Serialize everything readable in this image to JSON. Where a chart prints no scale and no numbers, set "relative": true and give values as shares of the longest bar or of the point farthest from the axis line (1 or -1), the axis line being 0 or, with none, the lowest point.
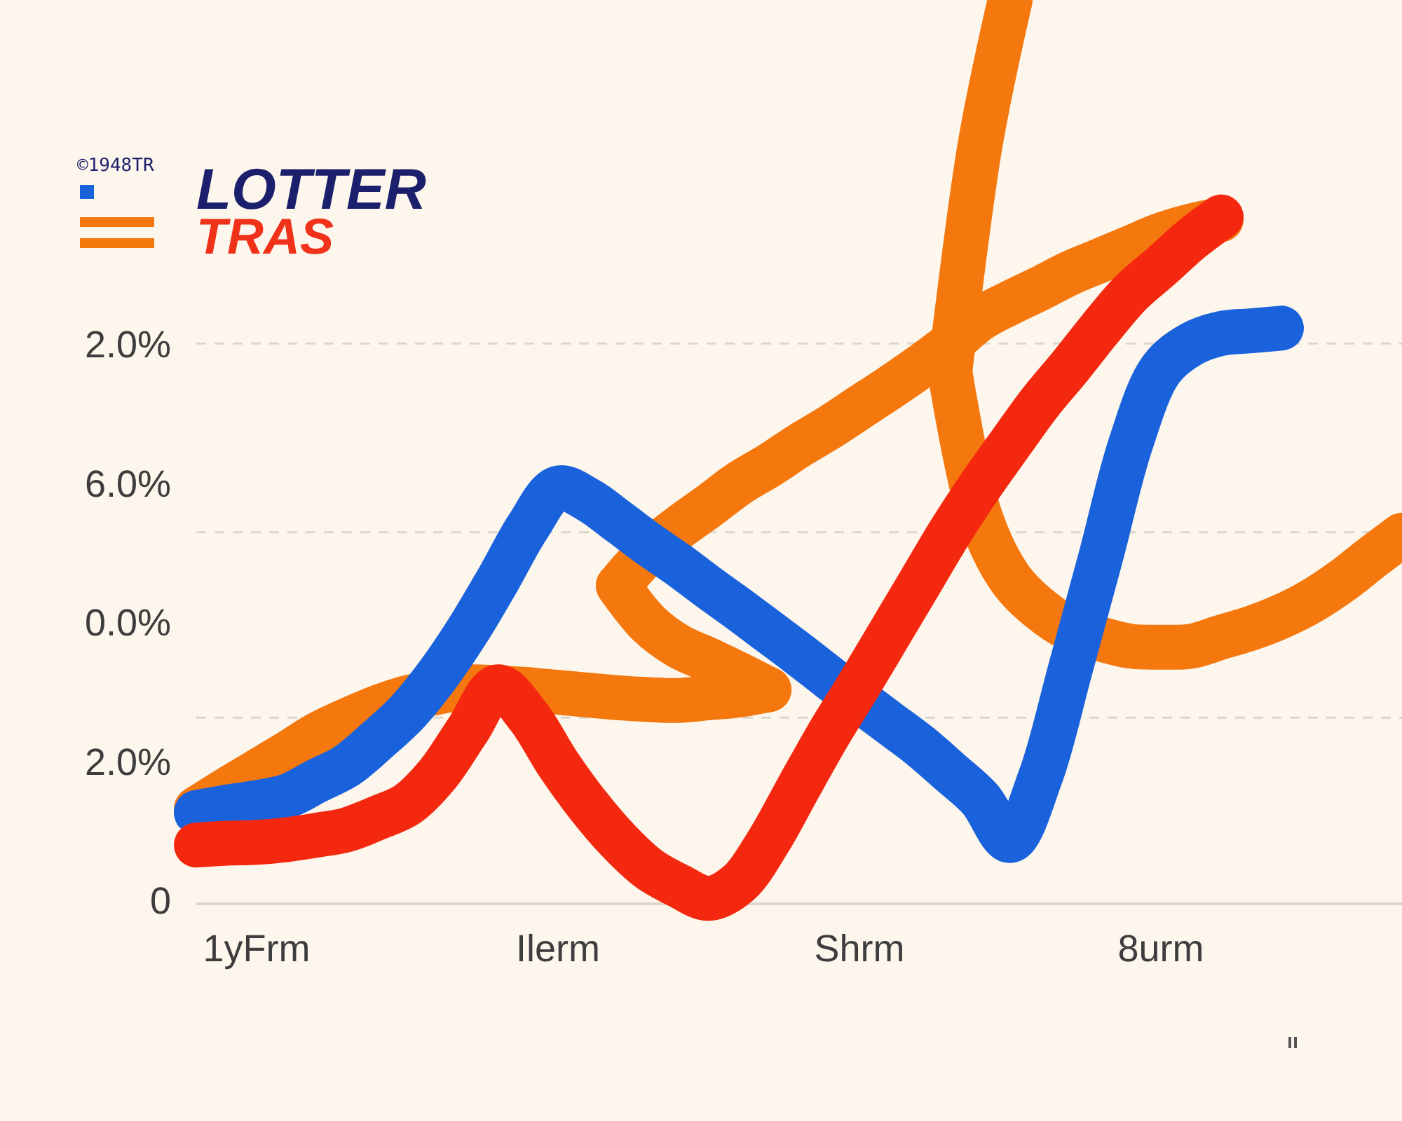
{
  "chart_data": {
    "type": "line",
    "title": "LOTTER",
    "subtitle": "TRAS",
    "relative": true,
    "categories": [
      null,
      null,
      "1yFrm",
      null,
      null,
      null,
      null,
      null,
      null,
      null,
      null,
      null,
      "Ilerm",
      null,
      null,
      null,
      null,
      null,
      null,
      null,
      null,
      null,
      "Shrm",
      null,
      null,
      null,
      null,
      null,
      null,
      null,
      null,
      null,
      "8urm",
      null,
      null,
      null,
      null,
      null,
      null,
      null,
      null
    ],
    "ref_lines": [
      {
        "axis": "y",
        "value": 0.62,
        "color": "#dcd6cc",
        "line_style": "dashed"
      },
      {
        "axis": "y",
        "value": 0.411,
        "color": "#dcd6cc",
        "line_style": "dashed"
      },
      {
        "axis": "y",
        "value": 0.206,
        "color": "#dcd6cc",
        "line_style": "dashed"
      }
    ],
    "series": [
      {
        "color": "#f5780f",
        "values": [
          0.105,
          0.126,
          0.146,
          0.166,
          0.187,
          0.203,
          0.217,
          0.228,
          0.234,
          0.24,
          0.239,
          0.237,
          0.234,
          0.231,
          0.228,
          0.226,
          0.225,
          0.228,
          0.231,
          0.237,
          null,
          null,
          null,
          null,
          null,
          0.589,
          0.429,
          0.36,
          0.326,
          0.304,
          0.293,
          0.285,
          0.284,
          0.285,
          0.295,
          0.305,
          0.318,
          0.335,
          0.357,
          0.383,
          0.408
        ]
      },
      {
        "color": "#f5780f",
        "values": [
          null,
          null,
          null,
          null,
          null,
          null,
          null,
          null,
          null,
          null,
          null,
          null,
          null,
          null,
          0.352,
          0.31,
          0.285,
          0.27,
          0.254,
          0.237,
          null,
          null,
          null,
          null,
          null,
          0.589,
          0.839,
          1,
          null,
          null,
          null,
          null,
          null,
          null,
          null,
          null,
          null,
          null,
          null,
          null,
          null
        ]
      },
      {
        "color": "#f5780f",
        "values": [
          null,
          null,
          null,
          null,
          null,
          null,
          null,
          null,
          null,
          null,
          null,
          null,
          null,
          null,
          0.352,
          0.389,
          0.416,
          0.44,
          0.465,
          0.485,
          0.507,
          0.527,
          0.549,
          0.571,
          0.594,
          0.619,
          0.647,
          0.665,
          0.681,
          0.698,
          0.712,
          0.726,
          0.74,
          0.75,
          0.757,
          null,
          null,
          null,
          null,
          null,
          null
        ]
      },
      {
        "color": "#1a62dc",
        "values": [
          0.101,
          0.107,
          0.112,
          0.119,
          0.136,
          0.153,
          0.181,
          0.212,
          0.253,
          0.302,
          0.358,
          0.417,
          0.46,
          0.447,
          0.423,
          0.398,
          0.375,
          0.35,
          0.326,
          0.301,
          0.276,
          0.25,
          0.225,
          0.2,
          0.175,
          0.146,
          0.116,
          0.07,
          0.14,
          0.26,
          0.383,
          0.509,
          0.591,
          0.619,
          0.631,
          0.634,
          0.637,
          null,
          null,
          null,
          null
        ]
      },
      {
        "color": "#f4280f",
        "values": [
          0.065,
          0.067,
          0.068,
          0.071,
          0.076,
          0.082,
          0.095,
          0.11,
          0.143,
          0.192,
          0.24,
          0.208,
          0.155,
          0.109,
          0.07,
          0.039,
          0.02,
          0.006,
          0.023,
          0.07,
          0.13,
          0.189,
          0.243,
          0.299,
          0.355,
          0.411,
          0.462,
          0.509,
          0.555,
          0.595,
          0.637,
          0.676,
          0.705,
          0.735,
          0.76,
          null,
          null,
          null,
          null,
          null,
          null
        ]
      }
    ],
    "annotations": [
      "©1948TR",
      "2.0%",
      "6.0%",
      "0.0%",
      "2.0%",
      "0"
    ]
  }
}
